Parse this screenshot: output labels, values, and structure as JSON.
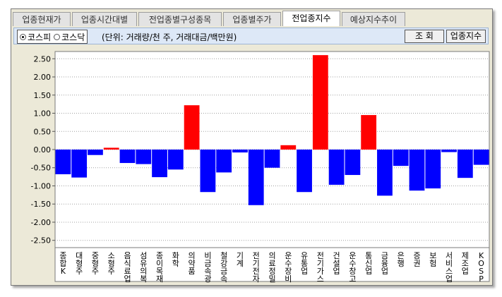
{
  "tabs": [
    {
      "label": "업종현재가",
      "active": false
    },
    {
      "label": "업종시간대별",
      "active": false
    },
    {
      "label": "전업종별구성종목",
      "active": false
    },
    {
      "label": "업종별주가",
      "active": false
    },
    {
      "label": "전업종지수",
      "active": true
    },
    {
      "label": "예상지수추이",
      "active": false
    }
  ],
  "toolbar": {
    "market_options": [
      {
        "label": "코스피",
        "selected": true
      },
      {
        "label": "코스닥",
        "selected": false
      }
    ],
    "unit_text": "(단위: 거래량/천 주, 거래대금/백만원)",
    "query_button": "조  회",
    "index_button": "업종지수"
  },
  "colors": {
    "positive": "#ff0000",
    "negative": "#0000ff",
    "background": "#ece9d8",
    "plot_background": "#ffffff"
  },
  "chart_data": {
    "type": "bar",
    "ylim": [
      -2.7,
      2.7
    ],
    "yticks": [
      "2.50",
      "2.00",
      "1.50",
      "1.00",
      "0.50",
      "0.00",
      "-0.50",
      "-1.00",
      "-1.50",
      "-2.00",
      "-2.50"
    ],
    "ytick_values": [
      2.5,
      2.0,
      1.5,
      1.0,
      0.5,
      0.0,
      -0.5,
      -1.0,
      -1.5,
      -2.0,
      -2.5
    ],
    "grid": true,
    "categories": [
      "종합(KOSPI)",
      "대형주",
      "중형주",
      "소형주",
      "음식료업",
      "섬유의복",
      "종이목재",
      "화학",
      "의약품",
      "비금속광물",
      "철강금속",
      "기계",
      "전기전자",
      "의료정밀",
      "운수장비",
      "유통업",
      "전기가스",
      "건설업",
      "운수창고",
      "통신업",
      "금융업",
      "은행",
      "증권",
      "보험",
      "서비스업",
      "제조업",
      "KOSPI"
    ],
    "x_labels": [
      "종합 K",
      "대형주",
      "중형주",
      "소형주",
      "음식료업",
      "섬유의복",
      "종이목재",
      "화학",
      "의약품",
      "비금속광",
      "철강금속",
      "기계",
      "전기전자",
      "의료정밀",
      "운수장비",
      "유통업",
      "전기가스",
      "건설업",
      "운수창고",
      "통신업",
      "금융업",
      "은행",
      "증권",
      "보험",
      "서비스업",
      "제조업",
      "KOSP"
    ],
    "values": [
      -0.68,
      -0.77,
      -0.15,
      0.05,
      -0.37,
      -0.4,
      -0.76,
      -0.55,
      1.22,
      -1.17,
      -0.63,
      -0.08,
      -1.53,
      -0.5,
      0.12,
      -1.17,
      2.6,
      -0.97,
      -0.7,
      0.95,
      -1.27,
      -0.45,
      -1.13,
      -1.07,
      -0.07,
      -0.78,
      -0.42
    ]
  }
}
